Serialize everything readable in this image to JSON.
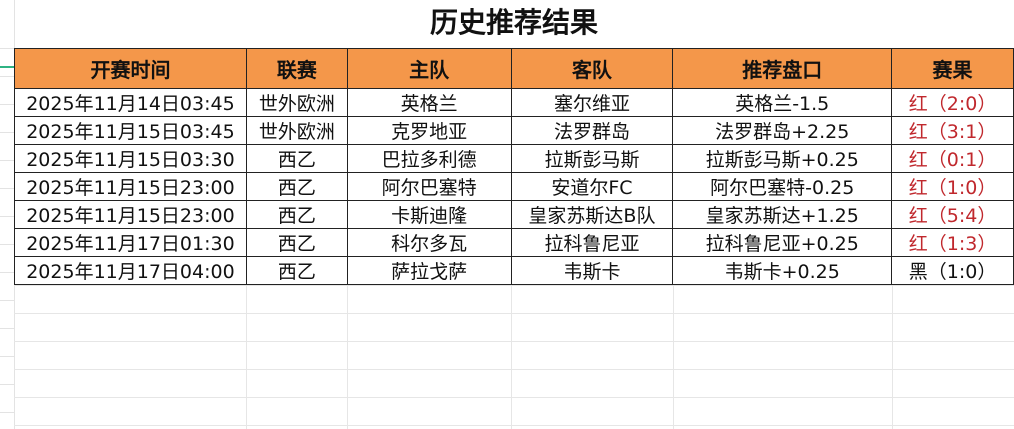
{
  "title": "历史推荐结果",
  "columns": [
    "开赛时间",
    "联赛",
    "主队",
    "客队",
    "推荐盘口",
    "赛果"
  ],
  "rows": [
    [
      "2025年11月14日03:45",
      "世外欧洲",
      "英格兰",
      "塞尔维亚",
      "英格兰-1.5",
      "红（2:0）"
    ],
    [
      "2025年11月15日03:45",
      "世外欧洲",
      "克罗地亚",
      "法罗群岛",
      "法罗群岛+2.25",
      "红（3:1）"
    ],
    [
      "2025年11月15日03:30",
      "西乙",
      "巴拉多利德",
      "拉斯彭马斯",
      "拉斯彭马斯+0.25",
      "红（0:1）"
    ],
    [
      "2025年11月15日23:00",
      "西乙",
      "阿尔巴塞特",
      "安道尔FC",
      "阿尔巴塞特-0.25",
      "红（1:0）"
    ],
    [
      "2025年11月15日23:00",
      "西乙",
      "卡斯迪隆",
      "皇家苏斯达B队",
      "皇家苏斯达+1.25",
      "红（5:4）"
    ],
    [
      "2025年11月17日01:30",
      "西乙",
      "科尔多瓦",
      "拉科鲁尼亚",
      "拉科鲁尼亚+0.25",
      "红（1:3）"
    ],
    [
      "2025年11月17日04:00",
      "西乙",
      "萨拉戈萨",
      "韦斯卡",
      "韦斯卡+0.25",
      "黑（1:0）"
    ]
  ],
  "colors": {
    "header_bg": "#f4974a",
    "win": "#c0282d",
    "loss": "#111111"
  }
}
